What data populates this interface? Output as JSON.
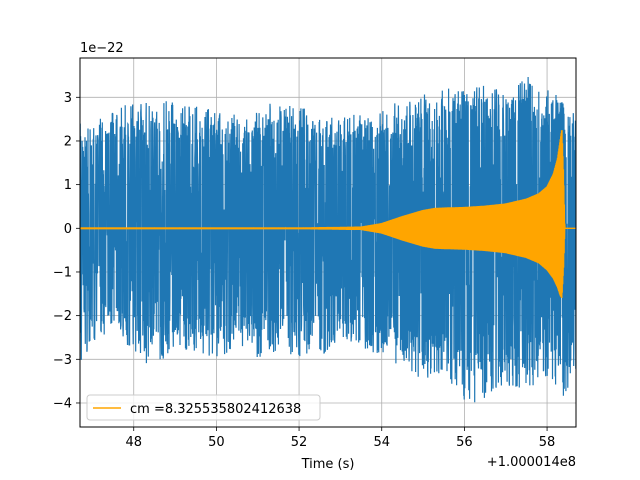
{
  "chart_data": {
    "type": "line",
    "title": "",
    "xlabel": "Time (s)",
    "ylabel": "",
    "x_offset_label": "+1.000014e8",
    "y_scale_label": "1e−22",
    "xlim": [
      46.7,
      58.7
    ],
    "ylim": [
      -4.55,
      3.9
    ],
    "x_ticks": [
      48,
      50,
      52,
      54,
      56,
      58
    ],
    "x_tick_labels": [
      "48",
      "50",
      "52",
      "54",
      "56",
      "58"
    ],
    "y_ticks": [
      -4,
      -3,
      -2,
      -1,
      0,
      1,
      2,
      3
    ],
    "y_tick_labels": [
      "−4",
      "−3",
      "−2",
      "−1",
      "0",
      "1",
      "2",
      "3"
    ],
    "grid": true,
    "legend_position": "lower-left",
    "series": [
      {
        "name": "",
        "color": "#1f77b4",
        "description_values": "noise strain envelope",
        "x": [
          46.7,
          47.0,
          47.5,
          48.0,
          48.5,
          49.0,
          49.5,
          50.0,
          50.5,
          51.0,
          51.5,
          52.0,
          52.5,
          53.0,
          53.5,
          54.0,
          54.5,
          55.0,
          55.5,
          56.0,
          56.5,
          57.0,
          57.5,
          58.0,
          58.2,
          58.4,
          58.7
        ],
        "upper": [
          2.3,
          2.5,
          2.7,
          2.9,
          3.0,
          2.9,
          2.8,
          2.7,
          2.6,
          2.8,
          2.9,
          2.8,
          2.6,
          2.5,
          2.7,
          2.8,
          2.9,
          3.1,
          3.2,
          3.2,
          3.3,
          3.1,
          3.5,
          3.3,
          3.1,
          2.9,
          2.6
        ],
        "lower": [
          -3.2,
          -2.6,
          -2.4,
          -2.8,
          -3.3,
          -2.7,
          -2.9,
          -3.1,
          -2.7,
          -3.0,
          -2.8,
          -3.0,
          -3.0,
          -2.6,
          -2.8,
          -2.9,
          -3.2,
          -3.6,
          -3.4,
          -4.0,
          -4.15,
          -3.6,
          -3.7,
          -3.4,
          -3.7,
          -3.9,
          -3.3
        ]
      },
      {
        "name": "cm =8.325535802412638",
        "color": "#ffa500",
        "x": [
          46.7,
          52.0,
          53.5,
          54.0,
          54.5,
          55.0,
          55.3,
          55.6,
          56.0,
          56.5,
          57.0,
          57.5,
          57.8,
          58.0,
          58.15,
          58.25,
          58.32,
          58.36,
          58.4,
          58.43,
          58.7
        ],
        "upper": [
          0.02,
          0.02,
          0.04,
          0.12,
          0.28,
          0.42,
          0.47,
          0.48,
          0.49,
          0.52,
          0.57,
          0.68,
          0.8,
          0.96,
          1.25,
          1.6,
          2.05,
          2.3,
          1.2,
          0.0,
          0.0
        ],
        "lower": [
          -0.02,
          -0.02,
          -0.04,
          -0.12,
          -0.28,
          -0.42,
          -0.47,
          -0.48,
          -0.49,
          -0.52,
          -0.57,
          -0.68,
          -0.8,
          -0.96,
          -1.15,
          -1.35,
          -1.55,
          -1.6,
          -0.9,
          0.0,
          0.0
        ]
      }
    ]
  }
}
